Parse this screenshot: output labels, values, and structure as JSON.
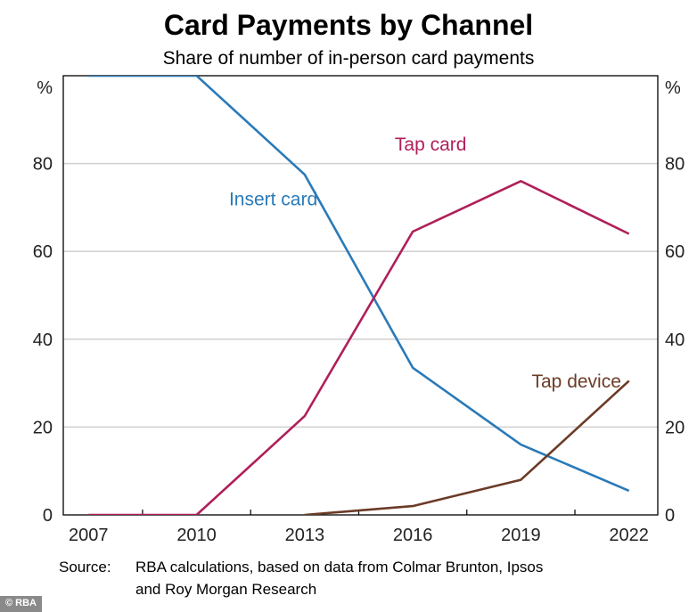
{
  "chart_data": {
    "type": "line",
    "title": "Card Payments by Channel",
    "subtitle": "Share of number of in-person card payments",
    "y_unit_left": "%",
    "y_unit_right": "%",
    "ylim": [
      0,
      100
    ],
    "yticks": [
      0,
      20,
      40,
      60,
      80
    ],
    "xlim": [
      2006.3,
      2022.8
    ],
    "xticks": [
      2007,
      2010,
      2013,
      2016,
      2019,
      2022
    ],
    "grid": true,
    "series": [
      {
        "name": "Insert card",
        "color": "#2a7ab8",
        "x": [
          2007,
          2010,
          2013,
          2016,
          2019,
          2022
        ],
        "y": [
          100,
          100,
          77.5,
          33.5,
          16,
          5.5
        ]
      },
      {
        "name": "Tap card",
        "color": "#b01f5a",
        "x": [
          2007,
          2010,
          2013,
          2016,
          2019,
          2022
        ],
        "y": [
          0,
          0,
          22.5,
          64.5,
          76,
          64
        ]
      },
      {
        "name": "Tap device",
        "color": "#6b3b27",
        "x": [
          2013,
          2016,
          2019,
          2022
        ],
        "y": [
          0,
          2,
          8,
          30.5
        ]
      }
    ],
    "series_labels": [
      {
        "text": "Insert card",
        "x": 2010.9,
        "y": 70.5,
        "color": "#2a7ab8"
      },
      {
        "text": "Tap card",
        "x": 2015.5,
        "y": 83,
        "color": "#b01f5a"
      },
      {
        "text": "Tap device",
        "x": 2019.3,
        "y": 29,
        "color": "#6b3b27"
      }
    ]
  },
  "source": {
    "label": "Source:",
    "line1": "RBA calculations, based on data from Colmar Brunton, Ipsos",
    "line2": "and Roy Morgan Research"
  },
  "watermark": "© RBA"
}
